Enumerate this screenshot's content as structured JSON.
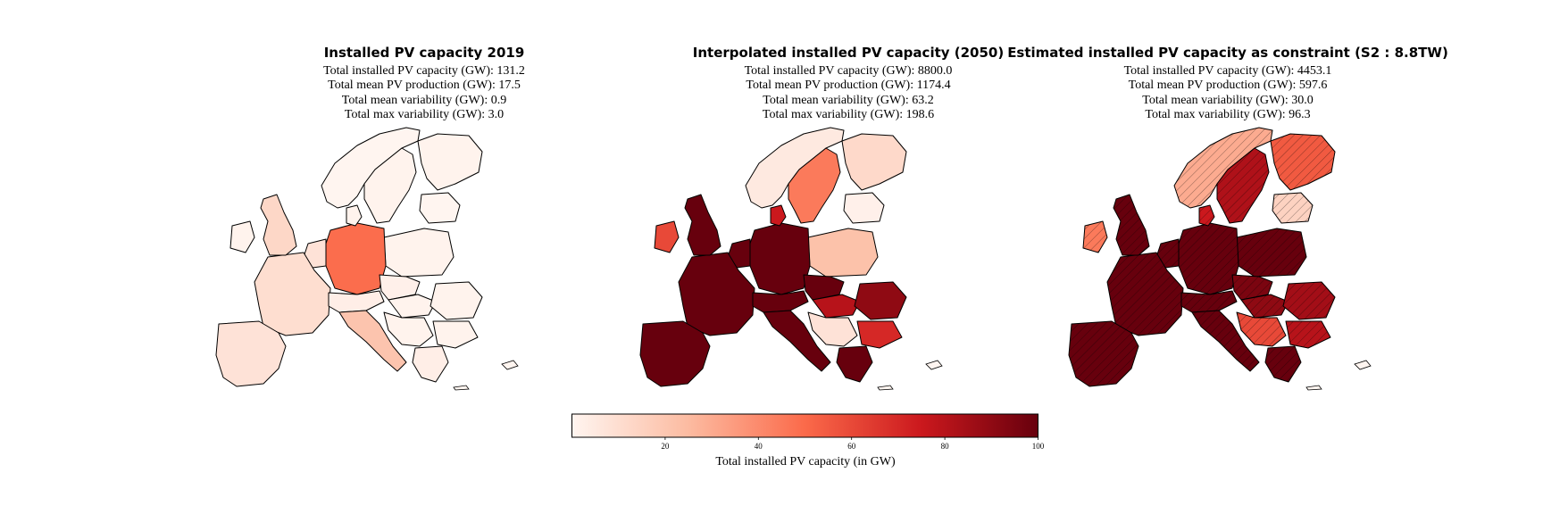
{
  "panels": [
    {
      "title": "Installed PV capacity 2019",
      "stats": [
        "Total installed PV capacity (GW): 131.2",
        "Total mean PV production (GW): 17.5",
        "Total mean variability (GW): 0.9",
        "Total max variability (GW): 3.0"
      ],
      "regions": {
        "scandinavia_norway": 0,
        "sweden": 1,
        "finland": 1,
        "baltics": 0,
        "poland": 1,
        "germany": 49,
        "france": 10,
        "iberia": 8,
        "uk": 13,
        "ireland": 1,
        "benelux": 8,
        "denmark": 1,
        "alps": 3,
        "italy": 21,
        "central_east": 2,
        "balkans_west": 1,
        "romania": 1,
        "bulgaria": 1,
        "hungary": 1,
        "greece": 3
      }
    },
    {
      "title": "Interpolated installed PV capacity (2050)",
      "stats": [
        "Total installed PV capacity (GW): 8800.0",
        "Total mean PV production (GW): 1174.4",
        "Total mean variability (GW): 63.2",
        "Total max variability (GW): 198.6"
      ],
      "regions": {
        "scandinavia_norway": 5,
        "sweden": 45,
        "finland": 12,
        "baltics": 2,
        "poland": 22,
        "germany": 100,
        "france": 100,
        "iberia": 100,
        "uk": 100,
        "ireland": 60,
        "benelux": 100,
        "denmark": 75,
        "alps": 100,
        "italy": 100,
        "central_east": 100,
        "balkans_west": 8,
        "romania": 90,
        "bulgaria": 70,
        "hungary": 80,
        "greece": 100
      }
    },
    {
      "title": "Estimated installed PV capacity as constraint (S2 :  8.8TW)",
      "stats": [
        "Total installed PV capacity (GW): 4453.1",
        "Total mean PV production (GW): 597.6",
        "Total mean variability (GW): 30.0",
        "Total max variability (GW): 96.3"
      ],
      "regions": {
        "scandinavia_norway": 30,
        "sweden": 82,
        "finland": 55,
        "baltics": 15,
        "poland": 100,
        "germany": 100,
        "france": 100,
        "iberia": 100,
        "uk": 100,
        "ireland": 45,
        "benelux": 100,
        "denmark": 75,
        "alps": 100,
        "italy": 100,
        "central_east": 95,
        "balkans_west": 60,
        "romania": 85,
        "bulgaria": 80,
        "hungary": 90,
        "greece": 100
      }
    }
  ],
  "colorbar": {
    "label": "Total installed PV capacity (in GW)",
    "ticks": [
      20,
      40,
      60,
      80,
      100
    ],
    "range": [
      0,
      100
    ],
    "colors": [
      "#fff5f0",
      "#fcbba1",
      "#fb6a4a",
      "#cb181d",
      "#67000d"
    ]
  }
}
